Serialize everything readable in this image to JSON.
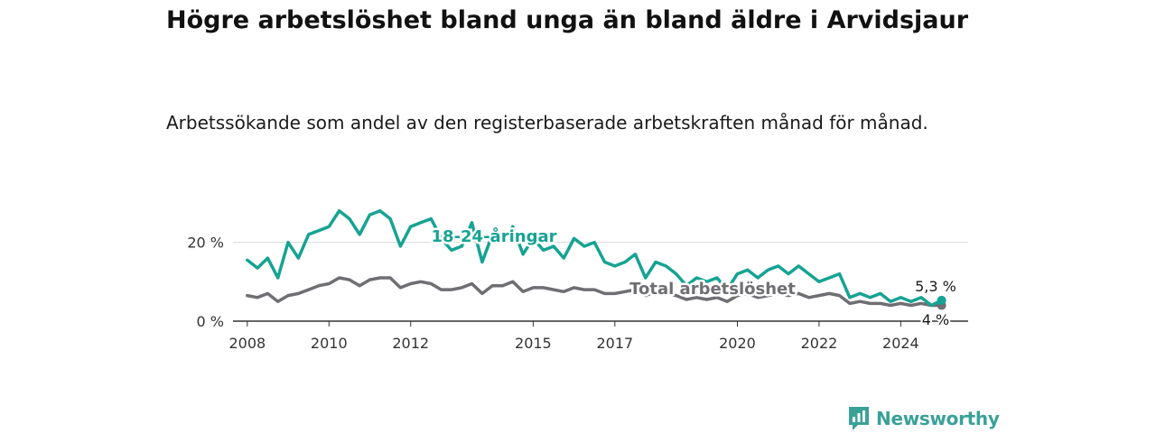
{
  "title": "Högre arbetslöshet bland unga än bland äldre i Arvidsjaur",
  "subtitle": "Arbetssökande som andel av den registerbaserade arbetskraften månad för månad.",
  "logo_text": "Newsworthy",
  "chart_data": {
    "type": "line",
    "x_ticks": [
      "2008",
      "2010",
      "2012",
      "2015",
      "2017",
      "2020",
      "2022",
      "2024"
    ],
    "y_ticks": [
      "0 %",
      "20 %"
    ],
    "ylim": [
      0,
      30
    ],
    "grid": true,
    "colors": {
      "youth": "#16a393",
      "total": "#6e6e73"
    },
    "series": [
      {
        "name": "18-24-åringar",
        "end_label": "5,3 %",
        "x": [
          "2008-01",
          "2008-04",
          "2008-07",
          "2008-10",
          "2009-01",
          "2009-04",
          "2009-07",
          "2009-10",
          "2010-01",
          "2010-04",
          "2010-07",
          "2010-10",
          "2011-01",
          "2011-04",
          "2011-07",
          "2011-10",
          "2012-01",
          "2012-04",
          "2012-07",
          "2012-10",
          "2013-01",
          "2013-04",
          "2013-07",
          "2013-10",
          "2014-01",
          "2014-04",
          "2014-07",
          "2014-10",
          "2015-01",
          "2015-04",
          "2015-07",
          "2015-10",
          "2016-01",
          "2016-04",
          "2016-07",
          "2016-10",
          "2017-01",
          "2017-04",
          "2017-07",
          "2017-10",
          "2018-01",
          "2018-04",
          "2018-07",
          "2018-10",
          "2019-01",
          "2019-04",
          "2019-07",
          "2019-10",
          "2020-01",
          "2020-04",
          "2020-07",
          "2020-10",
          "2021-01",
          "2021-04",
          "2021-07",
          "2021-10",
          "2022-01",
          "2022-04",
          "2022-07",
          "2022-10",
          "2023-01",
          "2023-04",
          "2023-07",
          "2023-10",
          "2024-01",
          "2024-04",
          "2024-07",
          "2024-10",
          "2025-01"
        ],
        "values": [
          15.5,
          13.5,
          16,
          11,
          20,
          16,
          22,
          23,
          24,
          28,
          26,
          22,
          27,
          28,
          26,
          19,
          24,
          25,
          26,
          21,
          18,
          19,
          25,
          15,
          22,
          20,
          24,
          17,
          21,
          18,
          19,
          16,
          21,
          19,
          20,
          15,
          14,
          15,
          17,
          11,
          15,
          14,
          12,
          9,
          11,
          10,
          11,
          8,
          12,
          13,
          11,
          13,
          14,
          12,
          14,
          12,
          10,
          11,
          12,
          6,
          7,
          6,
          7,
          5,
          6,
          5,
          6,
          4,
          5.3
        ]
      },
      {
        "name": "Total arbetslöshet",
        "end_label": "4 %",
        "x": [
          "2008-01",
          "2008-04",
          "2008-07",
          "2008-10",
          "2009-01",
          "2009-04",
          "2009-07",
          "2009-10",
          "2010-01",
          "2010-04",
          "2010-07",
          "2010-10",
          "2011-01",
          "2011-04",
          "2011-07",
          "2011-10",
          "2012-01",
          "2012-04",
          "2012-07",
          "2012-10",
          "2013-01",
          "2013-04",
          "2013-07",
          "2013-10",
          "2014-01",
          "2014-04",
          "2014-07",
          "2014-10",
          "2015-01",
          "2015-04",
          "2015-07",
          "2015-10",
          "2016-01",
          "2016-04",
          "2016-07",
          "2016-10",
          "2017-01",
          "2017-04",
          "2017-07",
          "2017-10",
          "2018-01",
          "2018-04",
          "2018-07",
          "2018-10",
          "2019-01",
          "2019-04",
          "2019-07",
          "2019-10",
          "2020-01",
          "2020-04",
          "2020-07",
          "2020-10",
          "2021-01",
          "2021-04",
          "2021-07",
          "2021-10",
          "2022-01",
          "2022-04",
          "2022-07",
          "2022-10",
          "2023-01",
          "2023-04",
          "2023-07",
          "2023-10",
          "2024-01",
          "2024-04",
          "2024-07",
          "2024-10",
          "2025-01"
        ],
        "values": [
          6.5,
          6,
          7,
          5,
          6.5,
          7,
          8,
          9,
          9.5,
          11,
          10.5,
          9,
          10.5,
          11,
          11,
          8.5,
          9.5,
          10,
          9.5,
          8,
          8,
          8.5,
          9.5,
          7,
          9,
          9,
          10,
          7.5,
          8.5,
          8.5,
          8,
          7.5,
          8.5,
          8,
          8,
          7,
          7,
          7.5,
          8,
          6.5,
          7.5,
          7,
          6.5,
          5.5,
          6,
          5.5,
          6,
          5,
          6.5,
          7,
          6,
          6.5,
          7,
          6.5,
          7,
          6,
          6.5,
          7,
          6.5,
          4.5,
          5,
          4.5,
          4.5,
          4,
          4.5,
          4,
          4.5,
          4,
          4
        ]
      }
    ]
  }
}
